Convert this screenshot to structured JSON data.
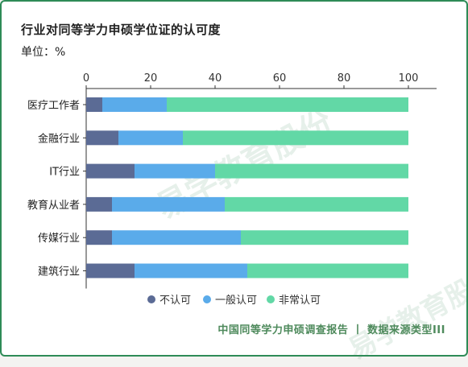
{
  "title": "行业对同等学力申硕学位证的认可度",
  "unit": "单位：%",
  "footer": "中国同等学力申硕调查报告 丨 数据来源类型III",
  "watermark": "易学教育股份",
  "colors": {
    "not_recognized": "#5b6b95",
    "general": "#5aabea",
    "very": "#62d8a6",
    "axis": "#333333",
    "border": "#2e8b57"
  },
  "chart_data": {
    "type": "bar",
    "orientation": "horizontal",
    "stacked": true,
    "categories": [
      "医疗工作者",
      "金融行业",
      "IT行业",
      "教育从业者",
      "传媒行业",
      "建筑行业"
    ],
    "series": [
      {
        "name": "不认可",
        "values": [
          5,
          10,
          15,
          8,
          8,
          15
        ]
      },
      {
        "name": "一般认可",
        "values": [
          20,
          20,
          25,
          35,
          40,
          35
        ]
      },
      {
        "name": "非常认可",
        "values": [
          75,
          70,
          60,
          57,
          52,
          50
        ]
      }
    ],
    "x_ticks": [
      "0",
      "20",
      "40",
      "60",
      "80",
      "100"
    ],
    "xlim": [
      0,
      100
    ],
    "grid": false,
    "legend_position": "bottom"
  }
}
